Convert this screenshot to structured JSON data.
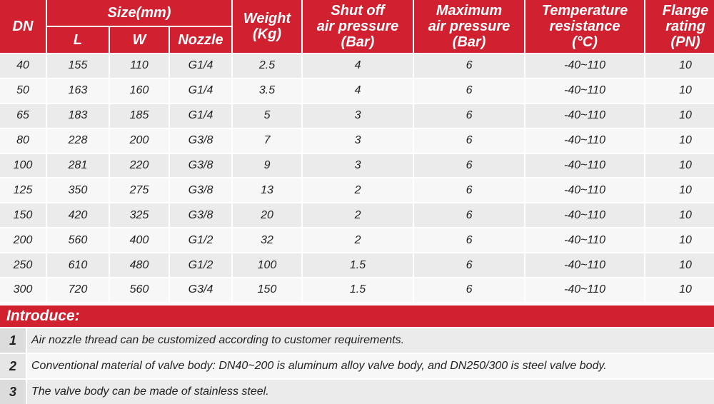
{
  "header": {
    "dn": "DN",
    "size": "Size(mm)",
    "l": "L",
    "w": "W",
    "nozzle": "Nozzle",
    "weight_1": "Weight",
    "weight_2": "(Kg)",
    "shutoff_1": "Shut off",
    "shutoff_2": "air pressure",
    "shutoff_3": "(Bar)",
    "maxp_1": "Maximum",
    "maxp_2": "air pressure",
    "maxp_3": "(Bar)",
    "temp_1": "Temperature",
    "temp_2": "resistance",
    "temp_3": "(°C)",
    "flange_1": "Flange",
    "flange_2": "rating",
    "flange_3": "(PN)"
  },
  "rows": [
    [
      "40",
      "155",
      "110",
      "G1/4",
      "2.5",
      "4",
      "6",
      "-40~110",
      "10"
    ],
    [
      "50",
      "163",
      "160",
      "G1/4",
      "3.5",
      "4",
      "6",
      "-40~110",
      "10"
    ],
    [
      "65",
      "183",
      "185",
      "G1/4",
      "5",
      "3",
      "6",
      "-40~110",
      "10"
    ],
    [
      "80",
      "228",
      "200",
      "G3/8",
      "7",
      "3",
      "6",
      "-40~110",
      "10"
    ],
    [
      "100",
      "281",
      "220",
      "G3/8",
      "9",
      "3",
      "6",
      "-40~110",
      "10"
    ],
    [
      "125",
      "350",
      "275",
      "G3/8",
      "13",
      "2",
      "6",
      "-40~110",
      "10"
    ],
    [
      "150",
      "420",
      "325",
      "G3/8",
      "20",
      "2",
      "6",
      "-40~110",
      "10"
    ],
    [
      "200",
      "560",
      "400",
      "G1/2",
      "32",
      "2",
      "6",
      "-40~110",
      "10"
    ],
    [
      "250",
      "610",
      "480",
      "G1/2",
      "100",
      "1.5",
      "6",
      "-40~110",
      "10"
    ],
    [
      "300",
      "720",
      "560",
      "G3/4",
      "150",
      "1.5",
      "6",
      "-40~110",
      "10"
    ]
  ],
  "intro": {
    "title": "Introduce:",
    "notes": [
      {
        "num": "1",
        "text": "Air nozzle thread can be customized according to customer requirements."
      },
      {
        "num": "2",
        "text": "Conventional material of valve body: DN40~200 is aluminum alloy valve body, and DN250/300 is steel valve body."
      },
      {
        "num": "3",
        "text": "The valve body can be made of stainless steel."
      }
    ]
  },
  "colors": {
    "header_red": "#d1202f",
    "row_light": "#f7f7f7",
    "row_dark": "#ebebeb"
  }
}
